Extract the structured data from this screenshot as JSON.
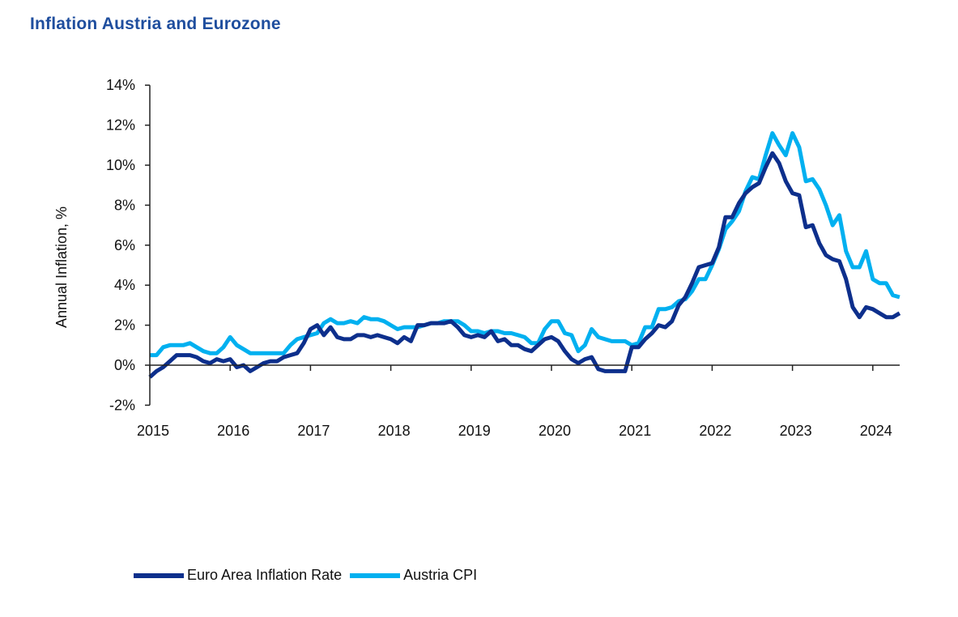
{
  "title": "Inflation Austria and Eurozone",
  "chart_data": {
    "type": "line",
    "title": "Inflation Austria and Eurozone",
    "ylabel": "Annual Inflation, %",
    "xlabel": "",
    "ylim": [
      -2,
      14
    ],
    "yticks": [
      "-2%",
      "0%",
      "2%",
      "4%",
      "6%",
      "8%",
      "10%",
      "12%",
      "14%"
    ],
    "xticks": [
      "2015",
      "2016",
      "2017",
      "2018",
      "2019",
      "2020",
      "2021",
      "2022",
      "2023",
      "2024"
    ],
    "x_start": "2015-01",
    "x_frequency": "monthly",
    "grid": false,
    "legend": "bottom",
    "series": [
      {
        "name": "Euro Area Inflation Rate",
        "color": "#0d2f8c",
        "values": [
          -0.6,
          -0.3,
          -0.1,
          0.2,
          0.5,
          0.5,
          0.5,
          0.4,
          0.2,
          0.1,
          0.3,
          0.2,
          0.3,
          -0.1,
          0.0,
          -0.3,
          -0.1,
          0.1,
          0.2,
          0.2,
          0.4,
          0.5,
          0.6,
          1.1,
          1.8,
          2.0,
          1.5,
          1.9,
          1.4,
          1.3,
          1.3,
          1.5,
          1.5,
          1.4,
          1.5,
          1.4,
          1.3,
          1.1,
          1.4,
          1.2,
          2.0,
          2.0,
          2.1,
          2.1,
          2.1,
          2.2,
          1.9,
          1.5,
          1.4,
          1.5,
          1.4,
          1.7,
          1.2,
          1.3,
          1.0,
          1.0,
          0.8,
          0.7,
          1.0,
          1.3,
          1.4,
          1.2,
          0.7,
          0.3,
          0.1,
          0.3,
          0.4,
          -0.2,
          -0.3,
          -0.3,
          -0.3,
          -0.3,
          0.9,
          0.9,
          1.3,
          1.6,
          2.0,
          1.9,
          2.2,
          3.0,
          3.4,
          4.1,
          4.9,
          5.0,
          5.1,
          5.9,
          7.4,
          7.4,
          8.1,
          8.6,
          8.9,
          9.1,
          9.9,
          10.6,
          10.1,
          9.2,
          8.6,
          8.5,
          6.9,
          7.0,
          6.1,
          5.5,
          5.3,
          5.2,
          4.3,
          2.9,
          2.4,
          2.9,
          2.8,
          2.6,
          2.4,
          2.4,
          2.6
        ]
      },
      {
        "name": "Austria CPI",
        "color": "#00b0f0",
        "values": [
          0.5,
          0.5,
          0.9,
          1.0,
          1.0,
          1.0,
          1.1,
          0.9,
          0.7,
          0.6,
          0.6,
          0.9,
          1.4,
          1.0,
          0.8,
          0.6,
          0.6,
          0.6,
          0.6,
          0.6,
          0.6,
          1.0,
          1.3,
          1.4,
          1.5,
          1.6,
          2.1,
          2.3,
          2.1,
          2.1,
          2.2,
          2.1,
          2.4,
          2.3,
          2.3,
          2.2,
          2.0,
          1.8,
          1.9,
          1.9,
          1.9,
          2.0,
          2.1,
          2.1,
          2.2,
          2.2,
          2.2,
          2.0,
          1.7,
          1.7,
          1.6,
          1.7,
          1.7,
          1.6,
          1.6,
          1.5,
          1.4,
          1.1,
          1.1,
          1.8,
          2.2,
          2.2,
          1.6,
          1.5,
          0.7,
          1.0,
          1.8,
          1.4,
          1.3,
          1.2,
          1.2,
          1.2,
          1.0,
          1.1,
          1.9,
          1.9,
          2.8,
          2.8,
          2.9,
          3.2,
          3.3,
          3.7,
          4.3,
          4.3,
          5.0,
          5.8,
          6.8,
          7.2,
          7.7,
          8.7,
          9.4,
          9.3,
          10.5,
          11.6,
          11.0,
          10.5,
          11.6,
          10.9,
          9.2,
          9.3,
          8.8,
          8.0,
          7.0,
          7.5,
          5.7,
          4.9,
          4.9,
          5.7,
          4.3,
          4.1,
          4.1,
          3.5,
          3.4
        ]
      }
    ]
  }
}
